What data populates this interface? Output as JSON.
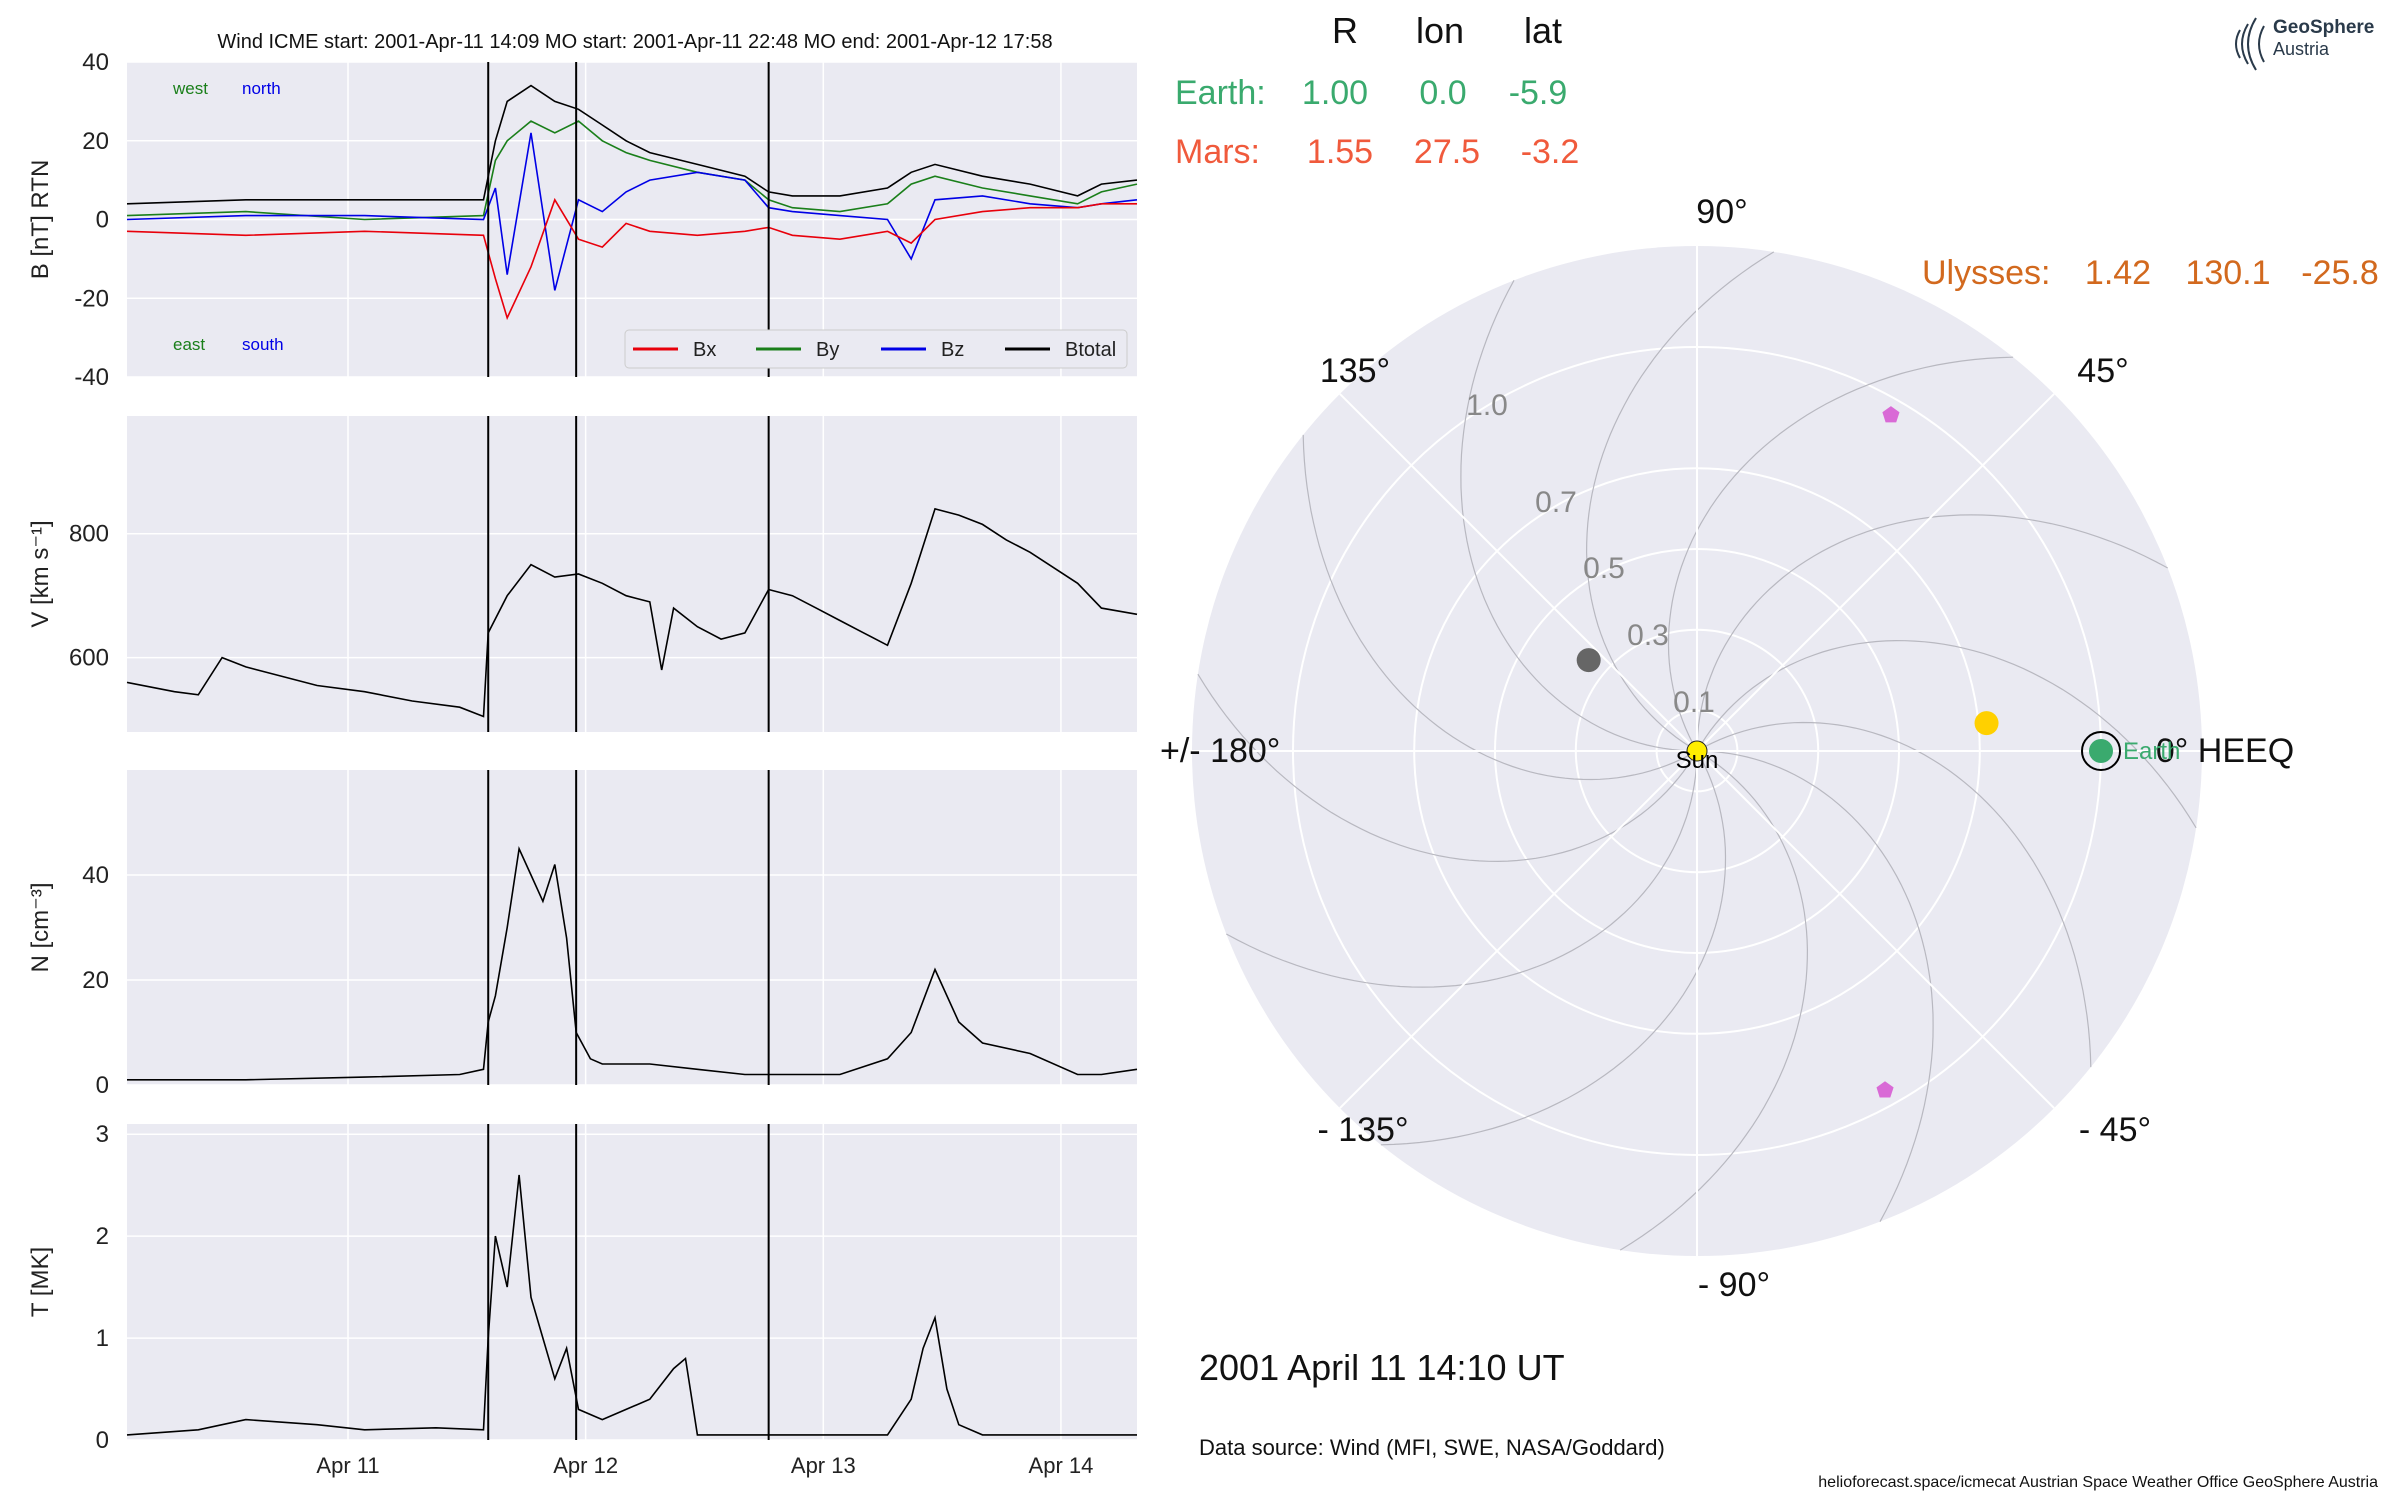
{
  "header": {
    "title": "Wind    ICME start: 2001-Apr-11 14:09   MO start: 2001-Apr-11 22:48   MO end: 2001-Apr-12 17:58"
  },
  "colors": {
    "background_panel": "#eaeaf2",
    "grid": "#ffffff",
    "bx": "#e8000b",
    "by": "#1a7f1a",
    "bz": "#0000e6",
    "btotal": "#000000",
    "earth": "#3aaa6e",
    "mars": "#f05a3c",
    "ulysses": "#d2691e",
    "mercury": "#666666",
    "venus": "#ffd000",
    "sun": "#ffee00",
    "stereo": "#d96ad6"
  },
  "chart_data": [
    {
      "type": "line",
      "panel": "magnetic-field",
      "ylabel": "B [nT] RTN",
      "ylim": [
        -40,
        40
      ],
      "yticks": [
        -40,
        -20,
        0,
        20,
        40
      ],
      "xlim": [
        0,
        4.25
      ],
      "xticks": [
        {
          "x": 0.93,
          "label": "Apr 11"
        },
        {
          "x": 1.93,
          "label": "Apr 12"
        },
        {
          "x": 2.93,
          "label": "Apr 13"
        },
        {
          "x": 3.93,
          "label": "Apr 14"
        }
      ],
      "x_units": "days since 2001-Apr-10 01:40 (approx)",
      "event_lines": [
        1.52,
        1.89,
        2.7
      ],
      "annotations": {
        "top_left": "west",
        "top_right": "north",
        "bottom_left": "east",
        "bottom_right": "south"
      },
      "legend": {
        "placement": "bottom-right",
        "entries": [
          "Bx",
          "By",
          "Bz",
          "Btotal"
        ]
      },
      "series": [
        {
          "name": "Btotal",
          "x": [
            0,
            0.5,
            1.0,
            1.5,
            1.55,
            1.6,
            1.7,
            1.8,
            1.9,
            2.0,
            2.1,
            2.2,
            2.4,
            2.6,
            2.7,
            2.8,
            3.0,
            3.2,
            3.3,
            3.4,
            3.6,
            3.8,
            4.0,
            4.1,
            4.25
          ],
          "y": [
            4,
            5,
            5,
            5,
            20,
            30,
            34,
            30,
            28,
            24,
            20,
            17,
            14,
            11,
            7,
            6,
            6,
            8,
            12,
            14,
            11,
            9,
            6,
            9,
            10
          ]
        },
        {
          "name": "By",
          "x": [
            0,
            0.5,
            1.0,
            1.5,
            1.55,
            1.6,
            1.7,
            1.8,
            1.9,
            2.0,
            2.1,
            2.2,
            2.4,
            2.6,
            2.7,
            2.8,
            3.0,
            3.2,
            3.3,
            3.4,
            3.6,
            3.8,
            4.0,
            4.1,
            4.25
          ],
          "y": [
            1,
            2,
            0,
            1,
            15,
            20,
            25,
            22,
            25,
            20,
            17,
            15,
            12,
            10,
            5,
            3,
            2,
            4,
            9,
            11,
            8,
            6,
            4,
            7,
            9
          ]
        },
        {
          "name": "Bz",
          "x": [
            0,
            0.5,
            1.0,
            1.5,
            1.55,
            1.6,
            1.7,
            1.8,
            1.9,
            2.0,
            2.1,
            2.2,
            2.4,
            2.6,
            2.7,
            2.8,
            3.0,
            3.2,
            3.3,
            3.4,
            3.6,
            3.8,
            4.0,
            4.1,
            4.25
          ],
          "y": [
            0,
            1,
            1,
            0,
            8,
            -14,
            22,
            -18,
            5,
            2,
            7,
            10,
            12,
            10,
            3,
            2,
            1,
            0,
            -10,
            5,
            6,
            4,
            3,
            4,
            5
          ]
        },
        {
          "name": "Bx",
          "x": [
            0,
            0.5,
            1.0,
            1.5,
            1.55,
            1.6,
            1.7,
            1.8,
            1.9,
            2.0,
            2.1,
            2.2,
            2.4,
            2.6,
            2.7,
            2.8,
            3.0,
            3.2,
            3.3,
            3.4,
            3.6,
            3.8,
            4.0,
            4.1,
            4.25
          ],
          "y": [
            -3,
            -4,
            -3,
            -4,
            -15,
            -25,
            -12,
            5,
            -5,
            -7,
            -1,
            -3,
            -4,
            -3,
            -2,
            -4,
            -5,
            -3,
            -6,
            0,
            2,
            3,
            3,
            4,
            4
          ]
        }
      ]
    },
    {
      "type": "line",
      "panel": "speed",
      "ylabel": "V [km s⁻¹]",
      "ylim": [
        480,
        990
      ],
      "yticks": [
        600,
        800
      ],
      "event_lines": [
        1.52,
        1.89,
        2.7
      ],
      "series": [
        {
          "name": "V",
          "x": [
            0,
            0.2,
            0.3,
            0.4,
            0.5,
            0.6,
            0.8,
            1.0,
            1.2,
            1.4,
            1.5,
            1.52,
            1.6,
            1.7,
            1.8,
            1.9,
            2.0,
            2.1,
            2.2,
            2.25,
            2.3,
            2.4,
            2.5,
            2.6,
            2.7,
            2.8,
            2.9,
            3.0,
            3.1,
            3.2,
            3.3,
            3.4,
            3.5,
            3.6,
            3.7,
            3.8,
            4.0,
            4.1,
            4.25
          ],
          "y": [
            560,
            545,
            540,
            600,
            585,
            575,
            555,
            545,
            530,
            520,
            505,
            640,
            700,
            750,
            730,
            735,
            720,
            700,
            690,
            580,
            680,
            650,
            630,
            640,
            710,
            700,
            680,
            660,
            640,
            620,
            720,
            840,
            830,
            815,
            790,
            770,
            720,
            680,
            670
          ]
        }
      ]
    },
    {
      "type": "line",
      "panel": "density",
      "ylabel": "N [cm⁻³]",
      "ylim": [
        0,
        60
      ],
      "yticks": [
        0,
        20,
        40
      ],
      "event_lines": [
        1.52,
        1.89,
        2.7
      ],
      "series": [
        {
          "name": "N",
          "x": [
            0,
            0.5,
            1.0,
            1.4,
            1.5,
            1.52,
            1.55,
            1.6,
            1.65,
            1.7,
            1.75,
            1.8,
            1.85,
            1.89,
            1.95,
            2.0,
            2.2,
            2.4,
            2.6,
            2.7,
            3.0,
            3.2,
            3.3,
            3.4,
            3.5,
            3.6,
            3.8,
            4.0,
            4.1,
            4.25
          ],
          "y": [
            1,
            1,
            1.5,
            2,
            3,
            12,
            17,
            30,
            45,
            40,
            35,
            42,
            28,
            10,
            5,
            4,
            4,
            3,
            2,
            2,
            2,
            5,
            10,
            22,
            12,
            8,
            6,
            2,
            2,
            3
          ]
        }
      ]
    },
    {
      "type": "line",
      "panel": "temperature",
      "ylabel": "T [MK]",
      "ylim": [
        0,
        3.1
      ],
      "yticks": [
        0,
        1,
        2,
        3
      ],
      "event_lines": [
        1.52,
        1.89,
        2.7
      ],
      "series": [
        {
          "name": "T",
          "x": [
            0,
            0.3,
            0.5,
            0.8,
            1.0,
            1.3,
            1.5,
            1.52,
            1.55,
            1.6,
            1.65,
            1.7,
            1.75,
            1.8,
            1.85,
            1.9,
            2.0,
            2.1,
            2.2,
            2.3,
            2.35,
            2.4,
            2.6,
            2.7,
            3.0,
            3.2,
            3.3,
            3.35,
            3.4,
            3.45,
            3.5,
            3.6,
            3.8,
            4.0,
            4.25
          ],
          "y": [
            0.05,
            0.1,
            0.2,
            0.15,
            0.1,
            0.12,
            0.1,
            1.0,
            2.0,
            1.5,
            2.6,
            1.4,
            1.0,
            0.6,
            0.9,
            0.3,
            0.2,
            0.3,
            0.4,
            0.7,
            0.8,
            0.05,
            0.05,
            0.05,
            0.05,
            0.05,
            0.4,
            0.9,
            1.2,
            0.5,
            0.15,
            0.05,
            0.05,
            0.05,
            0.05
          ]
        }
      ]
    },
    {
      "type": "scatter",
      "panel": "polar-position",
      "title": "2001 April 11  14:10 UT",
      "column_headers": [
        "R",
        "lon",
        "lat"
      ],
      "table": [
        {
          "name": "Earth:",
          "R": "1.00",
          "lon": "0.0",
          "lat": "-5.9"
        },
        {
          "name": "Mars:",
          "R": "1.55",
          "lon": "27.5",
          "lat": "-3.2"
        },
        {
          "name": "Ulysses:",
          "R": "1.42",
          "lon": "130.1",
          "lat": "-25.8"
        }
      ],
      "angle_labels": [
        {
          "angle": 0,
          "label": "0° HEEQ"
        },
        {
          "angle": 45,
          "label": "45°"
        },
        {
          "angle": 90,
          "label": "90°"
        },
        {
          "angle": 135,
          "label": "135°"
        },
        {
          "angle": 180,
          "label": "+/- 180°"
        },
        {
          "angle": -135,
          "label": "- 135°"
        },
        {
          "angle": -90,
          "label": "- 90°"
        },
        {
          "angle": -45,
          "label": "- 45°"
        }
      ],
      "radial_ticks": [
        {
          "r": 0.1,
          "label": "0.1"
        },
        {
          "r": 0.3,
          "label": "0.3"
        },
        {
          "r": 0.5,
          "label": "0.5"
        },
        {
          "r": 0.7,
          "label": "0.7"
        },
        {
          "r": 1.0,
          "label": "1.0"
        }
      ],
      "rmax": 1.25,
      "bodies": [
        {
          "name": "Sun",
          "label": "Sun",
          "r": 0.0,
          "lon": 0,
          "color": "#ffee00",
          "marker": "circle"
        },
        {
          "name": "Earth",
          "label": "Earth",
          "r": 1.0,
          "lon": 0.0,
          "color": "#3aaa6e",
          "marker": "circle-ringed"
        },
        {
          "name": "Mercury",
          "label": "",
          "r": 0.35,
          "lon": 140,
          "color": "#666666",
          "marker": "circle"
        },
        {
          "name": "Venus",
          "label": "",
          "r": 0.72,
          "lon": 5.5,
          "color": "#ffd000",
          "marker": "circle"
        },
        {
          "name": "STEREO-A",
          "label": "",
          "r": 0.96,
          "lon": 60,
          "color": "#d96ad6",
          "marker": "pentagon"
        },
        {
          "name": "STEREO-B",
          "label": "",
          "r": 0.96,
          "lon": -61,
          "color": "#d96ad6",
          "marker": "pentagon"
        }
      ]
    }
  ],
  "footer": {
    "data_source": "Data source: Wind (MFI, SWE, NASA/Goddard)",
    "credits": "helioforecast.space/icmecat   Austrian Space Weather Office   GeoSphere Austria"
  },
  "logo": {
    "line1": "GeoSphere",
    "line2": "Austria"
  }
}
